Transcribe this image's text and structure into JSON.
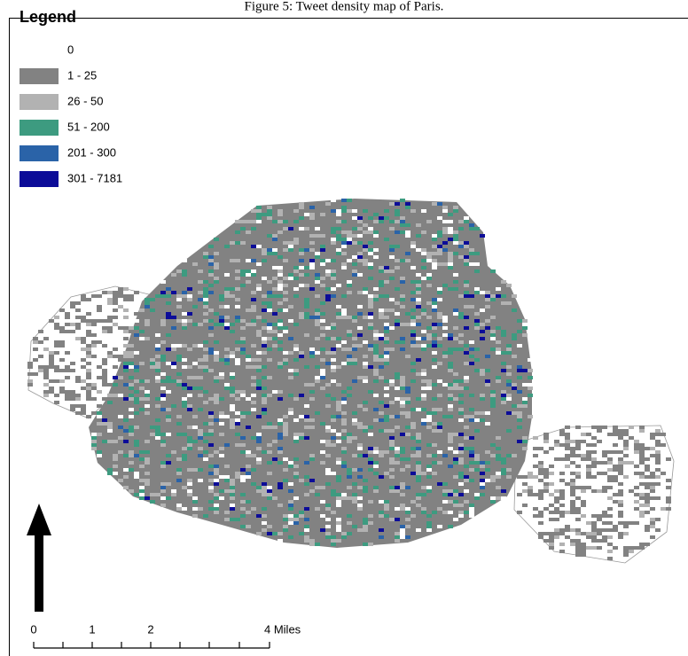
{
  "caption": "Figure 5: Tweet density map of Paris.",
  "legend": {
    "title": "Legend",
    "items": [
      {
        "label": "0",
        "color": "#ffffff"
      },
      {
        "label": "1 - 25",
        "color": "#828282"
      },
      {
        "label": "26 - 50",
        "color": "#b2b2b2"
      },
      {
        "label": "51 - 200",
        "color": "#3d9b80"
      },
      {
        "label": "201 - 300",
        "color": "#2a63a8"
      },
      {
        "label": "301 - 7181",
        "color": "#0c0c98"
      }
    ]
  },
  "scale_bar": {
    "labels": [
      "0",
      "1",
      "2",
      "4 Miles"
    ]
  }
}
